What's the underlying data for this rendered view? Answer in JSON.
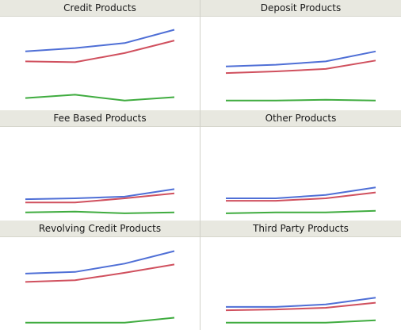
{
  "chart_data": [
    {
      "type": "line",
      "title": "Credit Products",
      "x": [
        1,
        2,
        3,
        4
      ],
      "ylim": [
        0,
        100
      ],
      "series": [
        {
          "color": "#4f6fd6",
          "values": [
            64,
            68,
            74,
            90
          ]
        },
        {
          "color": "#d0505e",
          "values": [
            52,
            51,
            62,
            77
          ]
        },
        {
          "color": "#40ac40",
          "values": [
            8,
            12,
            5,
            9
          ]
        }
      ]
    },
    {
      "type": "line",
      "title": "Deposit Products",
      "x": [
        1,
        2,
        3,
        4
      ],
      "ylim": [
        0,
        100
      ],
      "series": [
        {
          "color": "#4f6fd6",
          "values": [
            46,
            48,
            52,
            64
          ]
        },
        {
          "color": "#d0505e",
          "values": [
            38,
            40,
            43,
            53
          ]
        },
        {
          "color": "#40ac40",
          "values": [
            5,
            5,
            6,
            5
          ]
        }
      ]
    },
    {
      "type": "line",
      "title": "Fee Based Products",
      "x": [
        1,
        2,
        3,
        4
      ],
      "ylim": [
        0,
        100
      ],
      "series": [
        {
          "color": "#4f6fd6",
          "values": [
            19,
            20,
            22,
            31
          ]
        },
        {
          "color": "#d0505e",
          "values": [
            15,
            15,
            20,
            26
          ]
        },
        {
          "color": "#40ac40",
          "values": [
            3,
            4,
            2,
            3
          ]
        }
      ]
    },
    {
      "type": "line",
      "title": "Other Products",
      "x": [
        1,
        2,
        3,
        4
      ],
      "ylim": [
        0,
        100
      ],
      "series": [
        {
          "color": "#4f6fd6",
          "values": [
            20,
            20,
            24,
            33
          ]
        },
        {
          "color": "#d0505e",
          "values": [
            17,
            17,
            20,
            27
          ]
        },
        {
          "color": "#40ac40",
          "values": [
            2,
            3,
            3,
            5
          ]
        }
      ]
    },
    {
      "type": "line",
      "title": "Revolving Credit Products",
      "x": [
        1,
        2,
        3,
        4
      ],
      "ylim": [
        0,
        100
      ],
      "series": [
        {
          "color": "#4f6fd6",
          "values": [
            62,
            64,
            74,
            89
          ]
        },
        {
          "color": "#d0505e",
          "values": [
            52,
            54,
            63,
            73
          ]
        },
        {
          "color": "#40ac40",
          "values": [
            3,
            3,
            3,
            9
          ]
        }
      ]
    },
    {
      "type": "line",
      "title": "Third Party Products",
      "x": [
        1,
        2,
        3,
        4
      ],
      "ylim": [
        0,
        100
      ],
      "series": [
        {
          "color": "#4f6fd6",
          "values": [
            22,
            22,
            25,
            33
          ]
        },
        {
          "color": "#d0505e",
          "values": [
            18,
            19,
            21,
            27
          ]
        },
        {
          "color": "#40ac40",
          "values": [
            3,
            3,
            3,
            6
          ]
        }
      ]
    }
  ]
}
